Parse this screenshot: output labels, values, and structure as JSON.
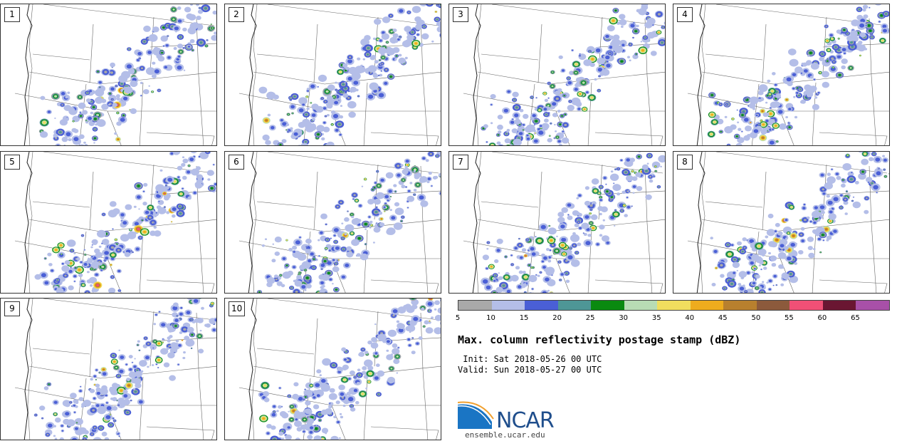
{
  "panels": [
    {
      "label": "1"
    },
    {
      "label": "2"
    },
    {
      "label": "3"
    },
    {
      "label": "4"
    },
    {
      "label": "5"
    },
    {
      "label": "6"
    },
    {
      "label": "7"
    },
    {
      "label": "8"
    },
    {
      "label": "9"
    },
    {
      "label": "10"
    }
  ],
  "colorbar": {
    "colors": [
      "#a9a9a9",
      "#b4bee8",
      "#4a5fd6",
      "#4e9696",
      "#0a8a10",
      "#b8dcb4",
      "#f0de5e",
      "#eeac1e",
      "#b8802e",
      "#8c5a3c",
      "#f05076",
      "#6a1632",
      "#a850a8"
    ],
    "ticks": [
      "5",
      "10",
      "15",
      "20",
      "25",
      "30",
      "35",
      "40",
      "45",
      "50",
      "55",
      "60",
      "65"
    ],
    "unit": "dBZ"
  },
  "title": "Max. column reflectivity postage stamp (dBZ)",
  "init_line": " Init: Sat 2018-05-26 00 UTC",
  "valid_line": "Valid: Sun 2018-05-27 00 UTC",
  "logo": {
    "text": "NCAR",
    "color": "#1f4e8c"
  },
  "website": "ensemble.ucar.edu"
}
